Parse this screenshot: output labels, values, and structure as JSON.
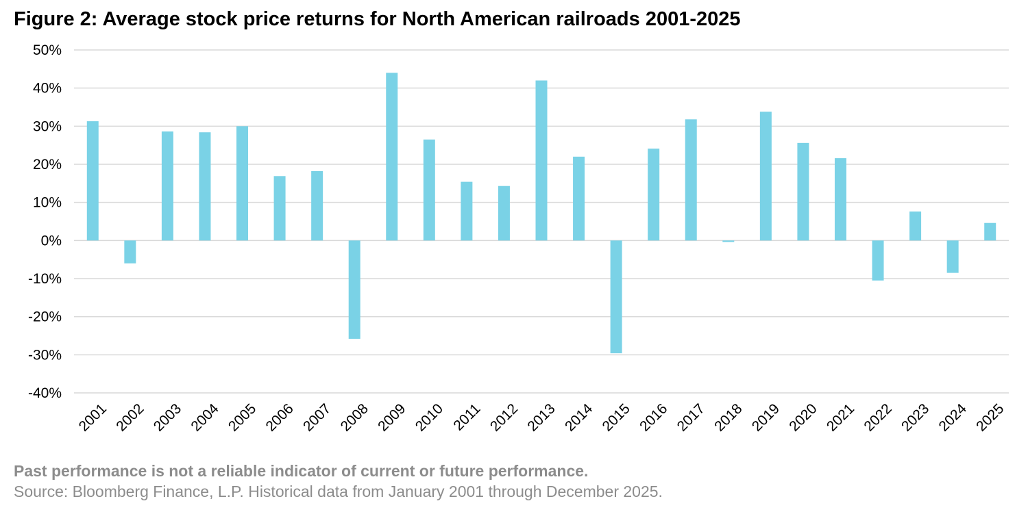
{
  "chart_data": {
    "type": "bar",
    "title": "Figure 2: Average stock price returns for North American railroads 2001-2025",
    "xlabel": "",
    "ylabel": "",
    "categories": [
      "2001",
      "2002",
      "2003",
      "2004",
      "2005",
      "2006",
      "2007",
      "2008",
      "2009",
      "2010",
      "2011",
      "2012",
      "2013",
      "2014",
      "2015",
      "2016",
      "2017",
      "2018",
      "2019",
      "2020",
      "2021",
      "2022",
      "2023",
      "2024",
      "2025"
    ],
    "values": [
      31.3,
      -6.0,
      28.6,
      28.4,
      30.0,
      16.9,
      18.2,
      -25.8,
      44.0,
      26.5,
      15.4,
      14.3,
      42.0,
      22.0,
      -29.6,
      24.1,
      31.8,
      -0.4,
      33.8,
      25.6,
      21.6,
      -10.5,
      7.6,
      -8.5,
      4.6
    ],
    "ylim": [
      -40,
      50
    ],
    "yticks": [
      50,
      40,
      30,
      20,
      10,
      0,
      -10,
      -20,
      -30,
      -40
    ],
    "ytick_labels": [
      "50%",
      "40%",
      "30%",
      "20%",
      "10%",
      "0%",
      "-10%",
      "-20%",
      "-30%",
      "-40%"
    ],
    "grid": true,
    "legend": "none",
    "bar_color": "#7ad2e6",
    "grid_color": "#d9d9d9"
  },
  "footnotes": {
    "disclaimer": "Past performance is not a reliable indicator of current or future performance.",
    "source": "Source: Bloomberg Finance, L.P. Historical data from January 2001 through December 2025."
  }
}
